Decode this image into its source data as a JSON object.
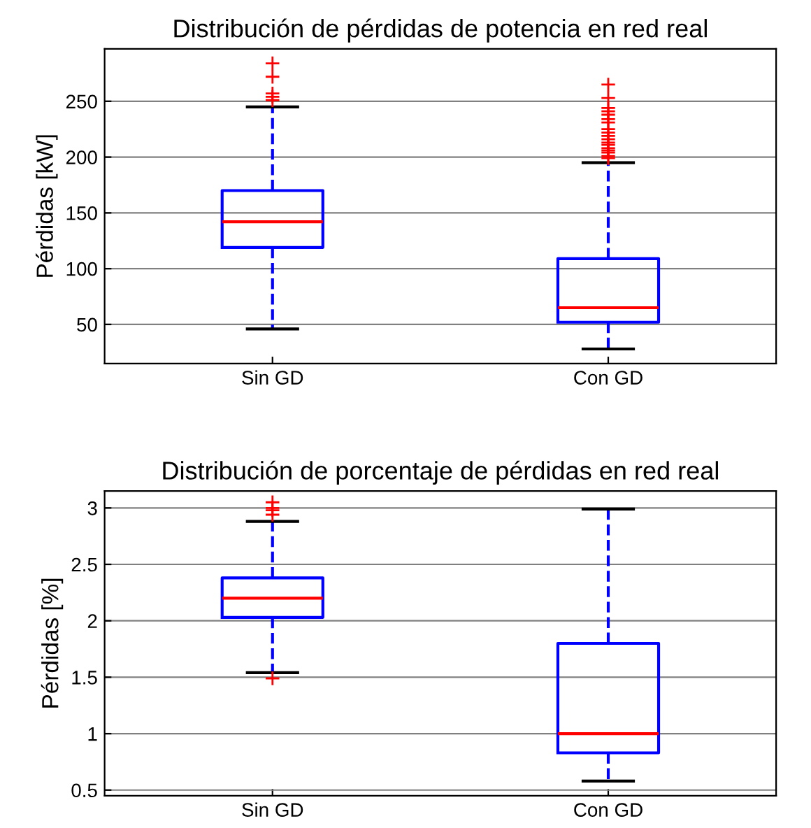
{
  "chart_data": [
    {
      "type": "box",
      "title": "Distribución de pérdidas de potencia en red real",
      "ylabel": "Pérdidas [kW]",
      "categories": [
        "Sin GD",
        "Con GD"
      ],
      "ylim": [
        15,
        297
      ],
      "yticks": [
        50,
        100,
        150,
        200,
        250
      ],
      "grid": "y",
      "boxes": [
        {
          "low": 46,
          "q1": 119,
          "median": 142,
          "q3": 170,
          "high": 245,
          "outliers": [
            251,
            254,
            257,
            272,
            284
          ]
        },
        {
          "low": 28,
          "q1": 52,
          "median": 65,
          "q3": 109,
          "high": 195,
          "outliers": [
            199,
            201,
            204,
            206,
            208,
            211,
            213,
            216,
            219,
            222,
            225,
            231,
            234,
            238,
            241,
            244,
            253,
            265
          ]
        }
      ]
    },
    {
      "type": "box",
      "title": "Distribución de porcentaje de pérdidas en red real",
      "ylabel": "Pérdidas [%]",
      "categories": [
        "Sin GD",
        "Con GD"
      ],
      "ylim": [
        0.45,
        3.15
      ],
      "yticks": [
        0.5,
        1,
        1.5,
        2,
        2.5,
        3
      ],
      "grid": "y",
      "boxes": [
        {
          "low": 1.54,
          "q1": 2.03,
          "median": 2.2,
          "q3": 2.38,
          "high": 2.88,
          "outliers": [
            1.49,
            2.94,
            2.98,
            3.0,
            3.05
          ]
        },
        {
          "low": 0.58,
          "q1": 0.83,
          "median": 1.0,
          "q3": 1.8,
          "high": 2.99
        }
      ]
    }
  ]
}
